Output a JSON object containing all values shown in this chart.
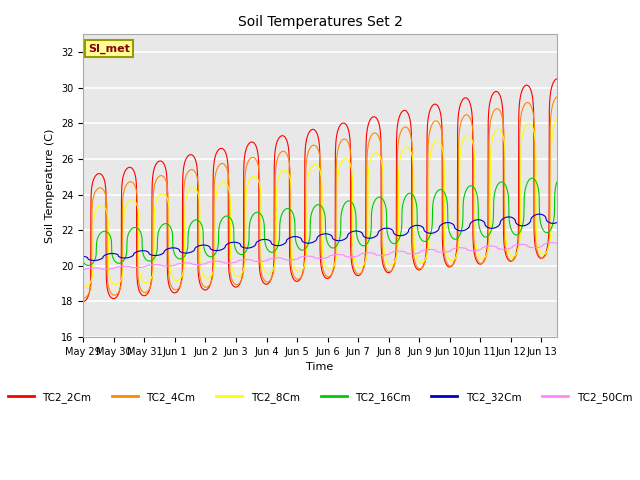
{
  "title": "Soil Temperatures Set 2",
  "xlabel": "Time",
  "ylabel": "Soil Temperature (C)",
  "ylim": [
    16,
    33
  ],
  "yticks": [
    16,
    18,
    20,
    22,
    24,
    26,
    28,
    30,
    32
  ],
  "annotation_text": "SI_met",
  "annotation_color": "#8b0000",
  "annotation_bg": "#ffff99",
  "annotation_edge": "#999900",
  "legend_entries": [
    "TC2_2Cm",
    "TC2_4Cm",
    "TC2_8Cm",
    "TC2_16Cm",
    "TC2_32Cm",
    "TC2_50Cm"
  ],
  "line_colors": [
    "#ff0000",
    "#ff8800",
    "#ffff00",
    "#00cc00",
    "#0000cc",
    "#ff88ff"
  ],
  "x_tick_labels": [
    "May 29",
    "May 30",
    "May 31",
    "Jun 1",
    "Jun 2",
    "Jun 3",
    "Jun 4",
    "Jun 5",
    "Jun 6",
    "Jun 7",
    "Jun 8",
    "Jun 9",
    "Jun 10",
    "Jun 11",
    "Jun 12",
    "Jun 13"
  ],
  "num_days": 15.5,
  "samples_per_day": 144,
  "figwidth": 6.4,
  "figheight": 4.8,
  "dpi": 100
}
